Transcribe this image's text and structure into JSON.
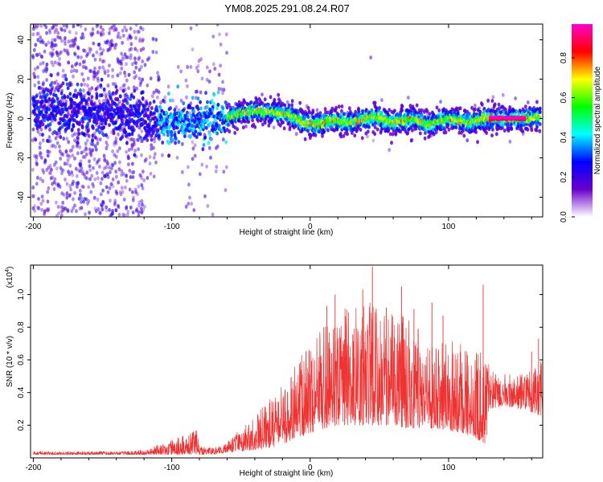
{
  "chart_data": [
    {
      "type": "scatter",
      "subtype": "spectral-density-scatter",
      "title": "YM08.2025.291.08.24.R07",
      "xlabel": "Height of straight line (km)",
      "ylabel": "Frequency (Hz)",
      "xlim": [
        -202,
        168
      ],
      "ylim": [
        -50,
        48
      ],
      "xticks": [
        -200,
        -100,
        0,
        100
      ],
      "xtick_labels": [
        "-200",
        "-100",
        "0",
        "100"
      ],
      "yticks": [
        -40,
        -20,
        0,
        20,
        40
      ],
      "ytick_labels": [
        "-40",
        "-20",
        "0",
        "20",
        "40"
      ],
      "colorbar": {
        "label": "Normalized spectral amplitude",
        "colormap": [
          "#ffffff",
          "#6a00cc",
          "#0000ff",
          "#00ffff",
          "#00ff00",
          "#ffff00",
          "#ff0000",
          "#ff00cc"
        ],
        "range": [
          0.0,
          0.97
        ],
        "ticks": [
          0.0,
          0.2,
          0.4,
          0.6,
          0.8
        ],
        "tick_labels": [
          "0.0",
          "0.2",
          "0.4",
          "0.6",
          "0.8"
        ]
      },
      "band_center_profile": {
        "x": [
          -200,
          -170,
          -140,
          -120,
          -110,
          -100,
          -80,
          -60,
          -40,
          -25,
          -15,
          -5,
          5,
          15,
          30,
          45,
          60,
          75,
          85,
          100,
          115,
          125,
          140,
          155,
          168
        ],
        "freq_hz": [
          5,
          4,
          3,
          0,
          -3,
          -2,
          -1,
          1,
          4,
          3,
          2,
          -2,
          -3,
          -1,
          -2,
          1,
          -2,
          0,
          -3,
          0,
          -2,
          0,
          0,
          0,
          1
        ]
      },
      "saturated_segment": {
        "x": [
          130,
          155
        ],
        "freq_hz": 0,
        "amplitude": 0.97
      }
    },
    {
      "type": "line",
      "xlabel": "Height of straight line (km)",
      "ylabel": "SNR (10 * v/v)",
      "y_multiplier": "(x10",
      "y_multiplier_exp": "4",
      "y_multiplier_close": ")",
      "xlim": [
        -202,
        168
      ],
      "ylim": [
        0,
        1.18
      ],
      "xticks": [
        -200,
        -100,
        0,
        100
      ],
      "xtick_labels": [
        "-200",
        "-100",
        "0",
        "100"
      ],
      "yticks": [
        0.2,
        0.4,
        0.6,
        0.8,
        1.0
      ],
      "ytick_labels": [
        "0.2",
        "0.4",
        "0.6",
        "0.8",
        "1.0"
      ],
      "color": "#ee3333",
      "envelope": {
        "x": [
          -200,
          -130,
          -120,
          -110,
          -100,
          -90,
          -82,
          -80,
          -70,
          -60,
          -50,
          -40,
          -30,
          -20,
          -10,
          0,
          10,
          20,
          30,
          40,
          50,
          60,
          70,
          80,
          90,
          100,
          110,
          120,
          128,
          130,
          140,
          150,
          160,
          168
        ],
        "base": [
          0.02,
          0.02,
          0.02,
          0.02,
          0.02,
          0.02,
          0.02,
          0.02,
          0.02,
          0.03,
          0.04,
          0.05,
          0.06,
          0.08,
          0.12,
          0.15,
          0.18,
          0.2,
          0.2,
          0.2,
          0.2,
          0.2,
          0.18,
          0.18,
          0.18,
          0.17,
          0.15,
          0.12,
          0.08,
          0.3,
          0.32,
          0.3,
          0.28,
          0.25
        ],
        "peak": [
          0.04,
          0.04,
          0.05,
          0.08,
          0.11,
          0.14,
          0.17,
          0.08,
          0.06,
          0.1,
          0.18,
          0.25,
          0.38,
          0.45,
          0.6,
          0.7,
          0.82,
          0.88,
          0.95,
          1.0,
          0.95,
          0.9,
          0.85,
          0.78,
          0.75,
          0.72,
          0.7,
          0.65,
          0.68,
          0.55,
          0.52,
          0.5,
          0.55,
          0.6
        ]
      },
      "spikes": [
        {
          "x": 12,
          "y": 0.93
        },
        {
          "x": 18,
          "y": 1.0
        },
        {
          "x": 38,
          "y": 1.03
        },
        {
          "x": 45,
          "y": 1.17
        },
        {
          "x": 55,
          "y": 0.92
        },
        {
          "x": 66,
          "y": 1.05
        },
        {
          "x": 75,
          "y": 0.91
        },
        {
          "x": 88,
          "y": 0.95
        },
        {
          "x": 96,
          "y": 0.87
        },
        {
          "x": 125,
          "y": 1.06
        },
        {
          "x": 160,
          "y": 0.65
        },
        {
          "x": 165,
          "y": 0.73
        }
      ]
    }
  ]
}
